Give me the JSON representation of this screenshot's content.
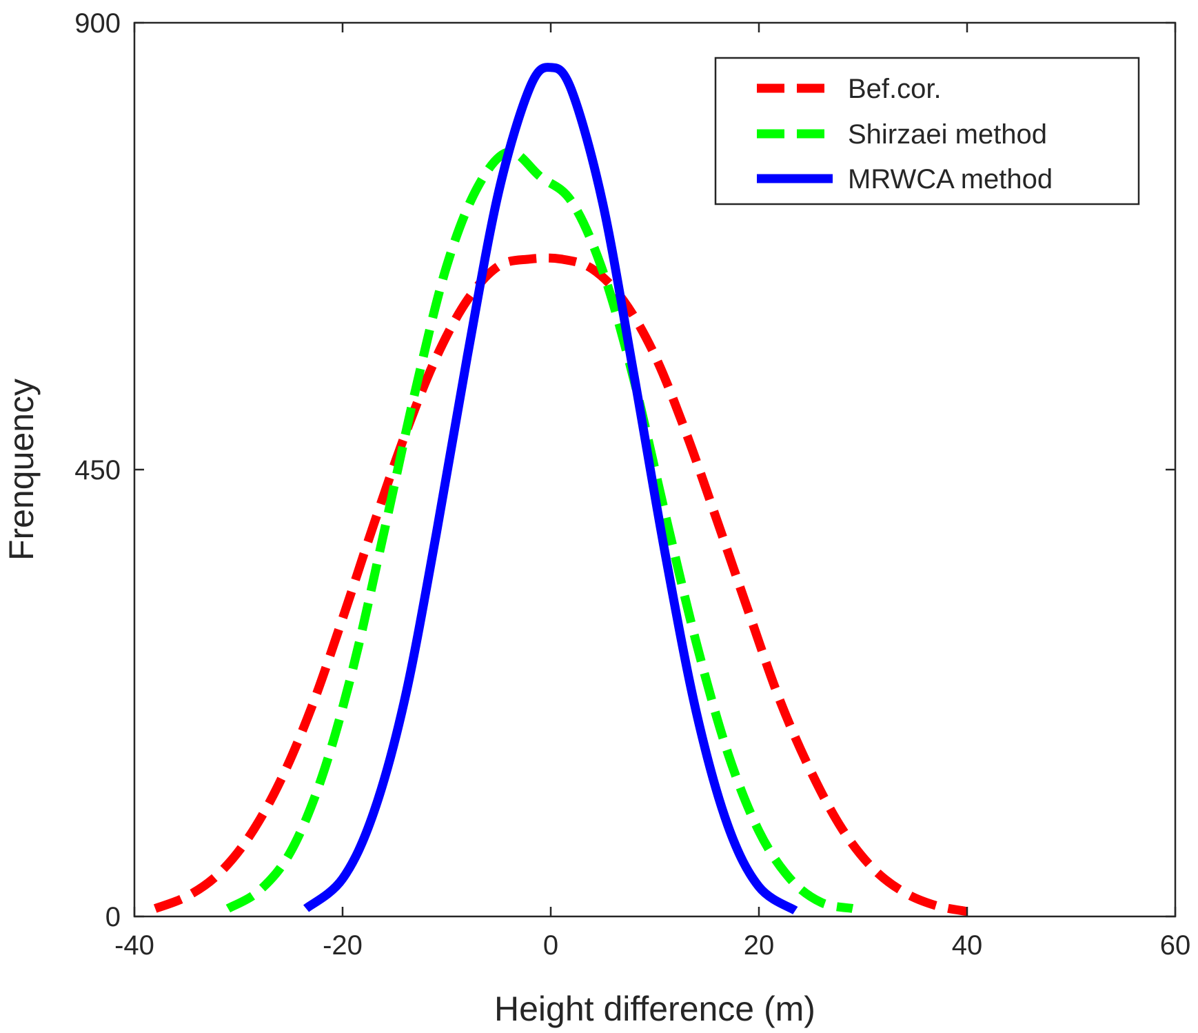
{
  "chart_data": {
    "type": "line",
    "title": "",
    "xlabel": "Height difference (m)",
    "ylabel": "Frenquency",
    "xlim": [
      -40,
      60
    ],
    "ylim": [
      0,
      900
    ],
    "xticks": [
      -40,
      -20,
      0,
      20,
      40,
      60
    ],
    "xtick_labels": [
      "-40",
      "-20",
      "0",
      "20",
      "40",
      "60"
    ],
    "yticks": [
      0,
      450,
      900
    ],
    "ytick_labels": [
      "0",
      "450",
      "900"
    ],
    "grid": false,
    "legend_position": "top-right",
    "series": [
      {
        "name": "Bef.cor.",
        "color": "#ff0000",
        "style": "dashed",
        "x": [
          -38,
          -35,
          -32,
          -29,
          -26,
          -23,
          -20,
          -17,
          -14,
          -11,
          -8,
          -5,
          -2,
          1,
          4,
          7,
          10,
          13,
          16,
          19,
          22,
          25,
          28,
          31,
          34,
          37,
          40
        ],
        "y": [
          8,
          20,
          42,
          80,
          136,
          210,
          300,
          395,
          485,
          563,
          621,
          655,
          662,
          662,
          652,
          620,
          565,
          487,
          398,
          307,
          218,
          146,
          88,
          48,
          24,
          11,
          5
        ]
      },
      {
        "name": "Shirzaei method",
        "color": "#00ff00",
        "style": "dashed",
        "x": [
          -31,
          -28,
          -25,
          -22,
          -19,
          -16,
          -13,
          -10,
          -7,
          -4,
          -1,
          2,
          5,
          8,
          11,
          14,
          17,
          20,
          23,
          26,
          29
        ],
        "y": [
          8,
          26,
          65,
          140,
          250,
          388,
          530,
          655,
          735,
          770,
          745,
          720,
          650,
          540,
          405,
          275,
          165,
          86,
          38,
          14,
          8
        ]
      },
      {
        "name": "MRWCA method",
        "color": "#0000ff",
        "style": "solid",
        "x": [
          -23.5,
          -20,
          -17,
          -14,
          -11,
          -8,
          -5,
          -2,
          0,
          2,
          5,
          8,
          11,
          14,
          17,
          20,
          23.5
        ],
        "y": [
          8,
          38,
          105,
          220,
          385,
          565,
          730,
          835,
          855,
          832,
          718,
          545,
          365,
          205,
          92,
          30,
          6
        ]
      }
    ]
  }
}
